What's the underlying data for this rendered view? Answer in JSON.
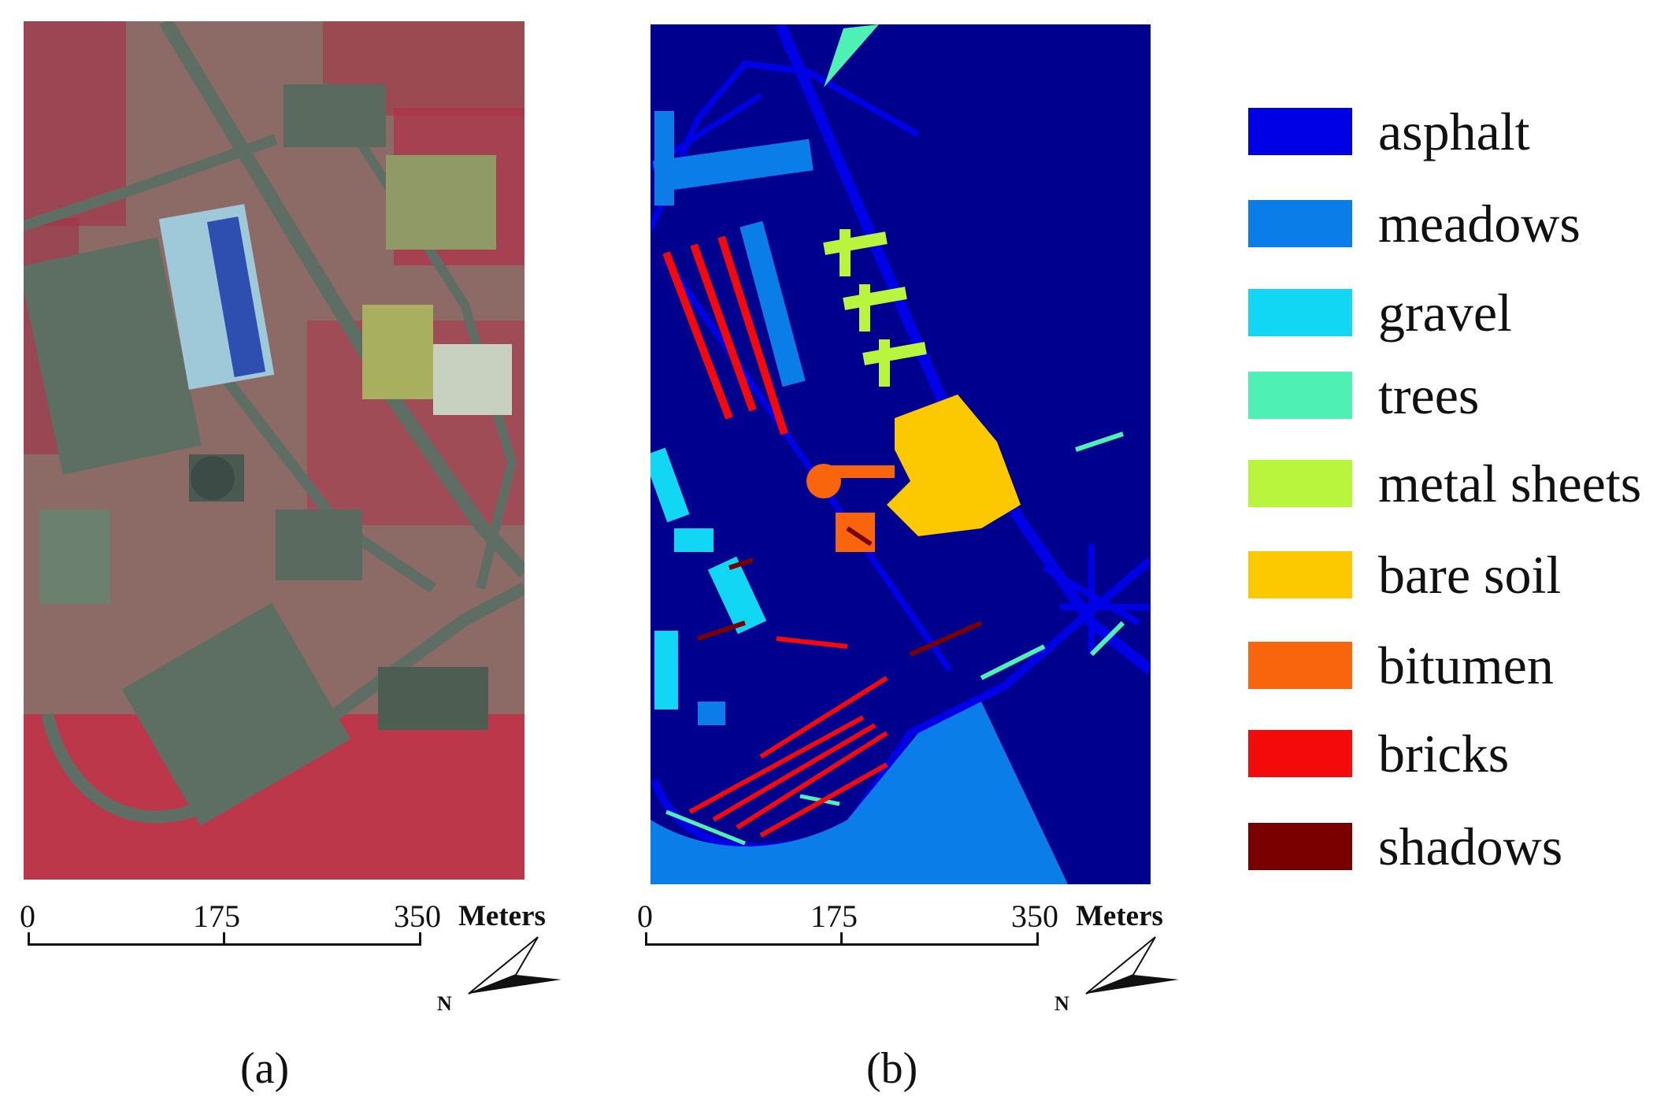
{
  "panel_a": {
    "caption": "(a)",
    "scale": {
      "ticks": [
        "0",
        "175",
        "350"
      ],
      "unit": "Meters"
    },
    "north": "N"
  },
  "panel_b": {
    "caption": "(b)",
    "scale": {
      "ticks": [
        "0",
        "175",
        "350"
      ],
      "unit": "Meters"
    },
    "north": "N"
  },
  "legend": [
    {
      "label": "asphalt",
      "color": "#0000e6"
    },
    {
      "label": "meadows",
      "color": "#0a7de8"
    },
    {
      "label": "gravel",
      "color": "#12d7f4"
    },
    {
      "label": "trees",
      "color": "#4ff0b4"
    },
    {
      "label": "metal sheets",
      "color": "#b8f53c"
    },
    {
      "label": "bare soil",
      "color": "#fcc800"
    },
    {
      "label": "bitumen",
      "color": "#f8650c"
    },
    {
      "label": "bricks",
      "color": "#f40a0a"
    },
    {
      "label": "shadows",
      "color": "#7a0000"
    }
  ],
  "colors": {
    "background_class": "#00008f",
    "false_color_soil": "#8c6a66",
    "vegetation_red": "#d01832"
  }
}
